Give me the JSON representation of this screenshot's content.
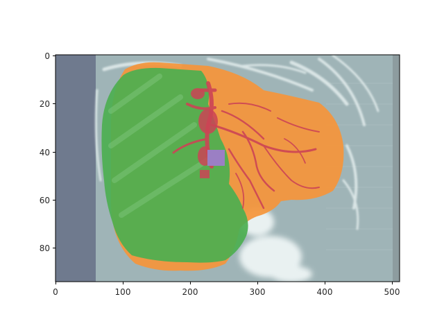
{
  "figure": {
    "x_ticks": [
      "0",
      "100",
      "200",
      "300",
      "400",
      "500"
    ],
    "y_ticks": [
      "0",
      "20",
      "40",
      "60",
      "80"
    ]
  },
  "chart_data": {
    "type": "image",
    "xlim": [
      0,
      511
    ],
    "ylim": [
      94,
      0
    ],
    "x_ticks": [
      0,
      100,
      200,
      300,
      400,
      500
    ],
    "y_ticks": [
      0,
      20,
      40,
      60,
      80
    ],
    "grid": false,
    "legend": "none",
    "overlay_colors": {
      "green_region": "#4caf50",
      "orange_region": "#f5953a",
      "red_vessels": "#cc4455",
      "purple_patch": "#9b7fc4"
    }
  }
}
